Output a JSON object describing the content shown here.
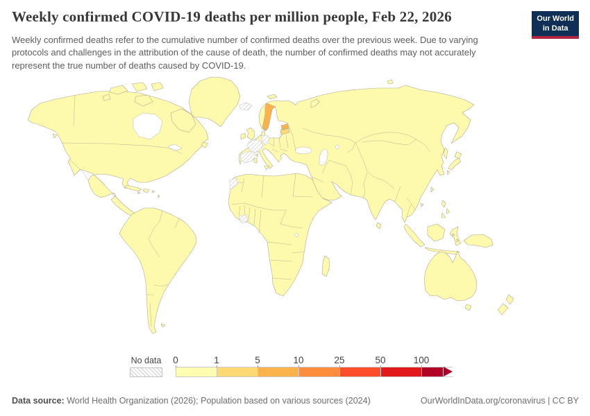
{
  "header": {
    "title": "Weekly confirmed COVID-19 deaths per million people, Feb 22, 2026",
    "subtitle": "Weekly confirmed deaths refer to the cumulative number of confirmed deaths over the previous week. Due to varying protocols and challenges in the attribution of the cause of death, the number of confirmed deaths may not accurately represent the true number of deaths caused by COVID-19.",
    "logo": {
      "line1": "Our World",
      "line2": "in Data",
      "bg_color": "#102f56",
      "accent_color": "#b02540"
    }
  },
  "legend": {
    "no_data_label": "No data",
    "tick_labels": [
      "0",
      "1",
      "5",
      "10",
      "25",
      "50",
      "100"
    ],
    "bins": [
      {
        "range": "0-1",
        "color": "#ffffb2"
      },
      {
        "range": "1-5",
        "color": "#fed976"
      },
      {
        "range": "5-10",
        "color": "#feb24c"
      },
      {
        "range": "10-25",
        "color": "#fd8d3c"
      },
      {
        "range": "25-50",
        "color": "#fc4e2a"
      },
      {
        "range": "50-100",
        "color": "#e31a1c"
      },
      {
        "range": "100+",
        "color": "#b10026"
      }
    ],
    "no_data_hatch_color": "#cccccc"
  },
  "map": {
    "default_color": "#fdfaae",
    "border_color": "#a8a290",
    "highlighted": [
      {
        "country": "Sweden",
        "bin": "5-10",
        "color": "#feb24c"
      },
      {
        "country": "Estonia",
        "bin": "5-10",
        "color": "#feb24c"
      },
      {
        "country": "Latvia",
        "bin": "1-5",
        "color": "#fed976"
      }
    ],
    "no_data_countries": [
      "Iceland",
      "France",
      "Spain",
      "Germany",
      "Western Sahara",
      "Côte d'Ivoire"
    ]
  },
  "footer": {
    "source_label": "Data source:",
    "source_text": " World Health Organization (2026); Population based on various sources (2024)",
    "attribution": "OurWorldInData.org/coronavirus | CC BY"
  },
  "chart_data": {
    "type": "heatmap",
    "title": "Weekly confirmed COVID-19 deaths per million people",
    "date": "Feb 22, 2026",
    "unit": "deaths per million people (cumulative over previous week)",
    "legend_position": "bottom",
    "value_bins": [
      {
        "range": "0-1",
        "color": "#ffffb2"
      },
      {
        "range": "1-5",
        "color": "#fed976"
      },
      {
        "range": "5-10",
        "color": "#feb24c"
      },
      {
        "range": "10-25",
        "color": "#fd8d3c"
      },
      {
        "range": "25-50",
        "color": "#fc4e2a"
      },
      {
        "range": "50-100",
        "color": "#e31a1c"
      },
      {
        "range": "100+",
        "color": "#b10026"
      }
    ],
    "observations": [
      {
        "region": "Sweden",
        "value_range": "5-10"
      },
      {
        "region": "Estonia",
        "value_range": "5-10"
      },
      {
        "region": "Latvia",
        "value_range": "1-5"
      },
      {
        "region": "Most other countries worldwide",
        "value_range": "0-1"
      },
      {
        "region": "Iceland",
        "value_range": "no data"
      },
      {
        "region": "France",
        "value_range": "no data"
      },
      {
        "region": "Spain",
        "value_range": "no data"
      },
      {
        "region": "Germany",
        "value_range": "no data"
      },
      {
        "region": "Western Sahara",
        "value_range": "no data"
      },
      {
        "region": "Côte d'Ivoire",
        "value_range": "no data"
      }
    ]
  }
}
